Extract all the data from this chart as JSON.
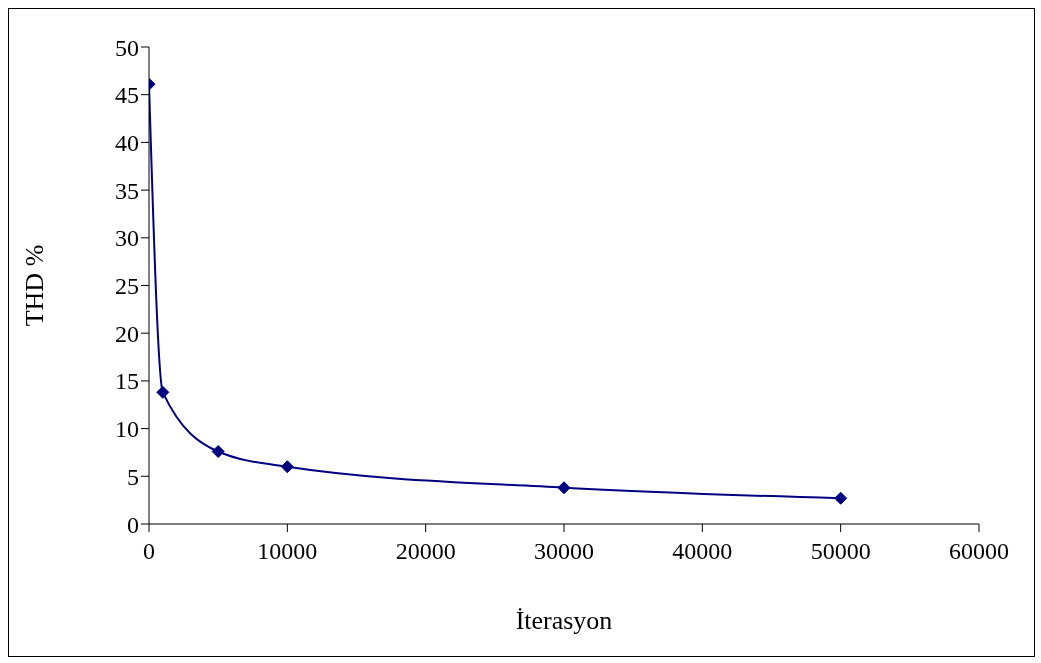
{
  "chart_data": {
    "type": "line",
    "xlabel": "İterasyon",
    "ylabel": "THD %",
    "x": [
      0,
      1000,
      5000,
      10000,
      30000,
      50000
    ],
    "series": [
      {
        "color": "#000080",
        "values": [
          46.1,
          13.8,
          7.6,
          6.0,
          3.8,
          2.7
        ]
      }
    ],
    "xlim": [
      0,
      60000
    ],
    "xticks": [
      0,
      10000,
      20000,
      30000,
      40000,
      50000,
      60000
    ],
    "ylim": [
      0,
      50
    ],
    "yticks": [
      0,
      5,
      10,
      15,
      20,
      25,
      30,
      35,
      40,
      45,
      50
    ],
    "grid": false,
    "legend": false,
    "marker": "diamond",
    "line_style": "solid"
  }
}
